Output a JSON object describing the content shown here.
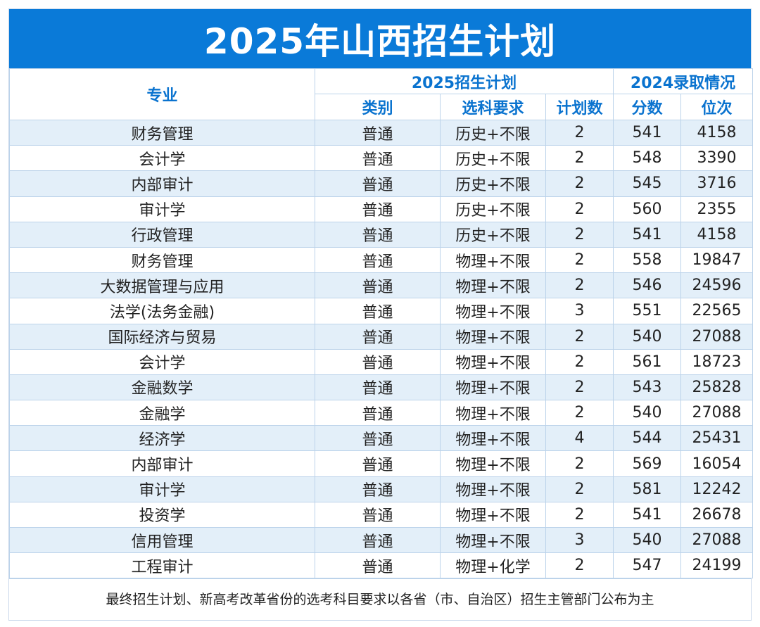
{
  "title": "2025年山西招生计划",
  "headers": {
    "major": "专业",
    "plan_group": "2025招生计划",
    "admit_group": "2024录取情况",
    "category": "类别",
    "subject_req": "选科要求",
    "plan_count": "计划数",
    "score": "分数",
    "rank": "位次"
  },
  "rows": [
    {
      "major": "财务管理",
      "category": "普通",
      "subject": "历史+不限",
      "count": "2",
      "score": "541",
      "rank": "4158"
    },
    {
      "major": "会计学",
      "category": "普通",
      "subject": "历史+不限",
      "count": "2",
      "score": "548",
      "rank": "3390"
    },
    {
      "major": "内部审计",
      "category": "普通",
      "subject": "历史+不限",
      "count": "2",
      "score": "545",
      "rank": "3716"
    },
    {
      "major": "审计学",
      "category": "普通",
      "subject": "历史+不限",
      "count": "2",
      "score": "560",
      "rank": "2355"
    },
    {
      "major": "行政管理",
      "category": "普通",
      "subject": "历史+不限",
      "count": "2",
      "score": "541",
      "rank": "4158"
    },
    {
      "major": "财务管理",
      "category": "普通",
      "subject": "物理+不限",
      "count": "2",
      "score": "558",
      "rank": "19847"
    },
    {
      "major": "大数据管理与应用",
      "category": "普通",
      "subject": "物理+不限",
      "count": "2",
      "score": "546",
      "rank": "24596"
    },
    {
      "major": "法学(法务金融)",
      "category": "普通",
      "subject": "物理+不限",
      "count": "3",
      "score": "551",
      "rank": "22565"
    },
    {
      "major": "国际经济与贸易",
      "category": "普通",
      "subject": "物理+不限",
      "count": "2",
      "score": "540",
      "rank": "27088"
    },
    {
      "major": "会计学",
      "category": "普通",
      "subject": "物理+不限",
      "count": "2",
      "score": "561",
      "rank": "18723"
    },
    {
      "major": "金融数学",
      "category": "普通",
      "subject": "物理+不限",
      "count": "2",
      "score": "543",
      "rank": "25828"
    },
    {
      "major": "金融学",
      "category": "普通",
      "subject": "物理+不限",
      "count": "2",
      "score": "540",
      "rank": "27088"
    },
    {
      "major": "经济学",
      "category": "普通",
      "subject": "物理+不限",
      "count": "4",
      "score": "544",
      "rank": "25431"
    },
    {
      "major": "内部审计",
      "category": "普通",
      "subject": "物理+不限",
      "count": "2",
      "score": "569",
      "rank": "16054"
    },
    {
      "major": "审计学",
      "category": "普通",
      "subject": "物理+不限",
      "count": "2",
      "score": "581",
      "rank": "12242"
    },
    {
      "major": "投资学",
      "category": "普通",
      "subject": "物理+不限",
      "count": "2",
      "score": "541",
      "rank": "26678"
    },
    {
      "major": "信用管理",
      "category": "普通",
      "subject": "物理+不限",
      "count": "3",
      "score": "540",
      "rank": "27088"
    },
    {
      "major": "工程审计",
      "category": "普通",
      "subject": "物理+化学",
      "count": "2",
      "score": "547",
      "rank": "24199"
    }
  ],
  "footer": "最终招生计划、新高考改革省份的选考科目要求以各省（市、自治区）招生主管部门公布为主",
  "colors": {
    "title_bg": "#0a7ad8",
    "header_text": "#0a73cf",
    "stripe": "#e3eff9",
    "border": "#bcd3ea"
  }
}
